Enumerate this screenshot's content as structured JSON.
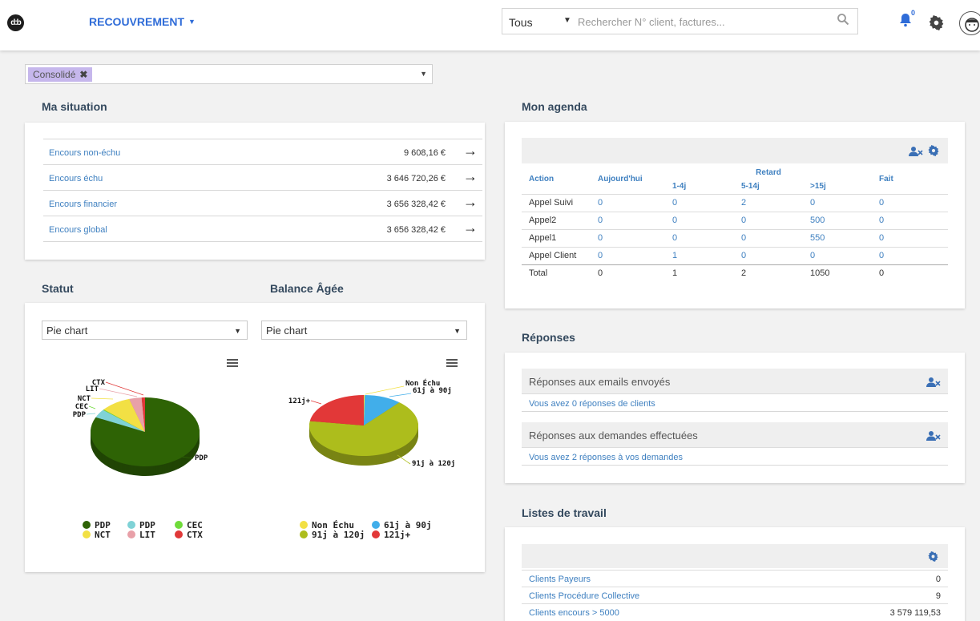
{
  "header": {
    "logo_text": "d:b",
    "module_label": "RECOUVREMENT",
    "search": {
      "scope": "Tous",
      "placeholder": "Rechercher N° client, factures..."
    },
    "notifications_count": "0"
  },
  "filter": {
    "tag": "Consolidé"
  },
  "situation": {
    "title": "Ma situation",
    "rows": [
      {
        "label": "Encours non-échu",
        "value": "9 608,16 €"
      },
      {
        "label": "Encours échu",
        "value": "3 646 720,26 €"
      },
      {
        "label": "Encours financier",
        "value": "3 656 328,42 €"
      },
      {
        "label": "Encours global",
        "value": "3 656 328,42 €"
      }
    ]
  },
  "statut": {
    "title": "Statut",
    "select_value": "Pie chart"
  },
  "balance": {
    "title": "Balance Âgée",
    "select_value": "Pie chart"
  },
  "chart_data": [
    {
      "type": "pie",
      "series": [
        {
          "name": "PDP",
          "value": 82,
          "color": "#2e6305"
        },
        {
          "name": "PDP",
          "value": 4,
          "color": "#7fd2d6"
        },
        {
          "name": "CEC",
          "value": 0.3,
          "color": "#6fdb3a"
        },
        {
          "name": "NCT",
          "value": 9,
          "color": "#f2e044"
        },
        {
          "name": "LIT",
          "value": 3.7,
          "color": "#e8a0a8"
        },
        {
          "name": "CTX",
          "value": 1,
          "color": "#e03838"
        }
      ],
      "labels": [
        "PDP",
        "CTX",
        "LIT",
        "NCT",
        "CEC",
        "PDP"
      ]
    },
    {
      "type": "pie",
      "series": [
        {
          "name": "Non Échu",
          "value": 0.3,
          "color": "#f2e044"
        },
        {
          "name": "61j à 90j",
          "value": 11,
          "color": "#41aeea"
        },
        {
          "name": "91j à 120j",
          "value": 66,
          "color": "#adbd1c"
        },
        {
          "name": "121j+",
          "value": 22.7,
          "color": "#e23838"
        }
      ],
      "labels": [
        "Non Échu",
        "61j à 90j",
        "91j à 120j",
        "121j+"
      ]
    }
  ],
  "agenda": {
    "title": "Mon agenda",
    "headers": {
      "action": "Action",
      "today": "Aujourd'hui",
      "retard": "Retard",
      "r1": "1-4j",
      "r2": "5-14j",
      "r3": ">15j",
      "done": "Fait"
    },
    "rows": [
      {
        "action": "Appel Suivi",
        "today": "0",
        "r1": "0",
        "r2": "2",
        "r3": "0",
        "done": "0"
      },
      {
        "action": "Appel2",
        "today": "0",
        "r1": "0",
        "r2": "0",
        "r3": "500",
        "done": "0"
      },
      {
        "action": "Appel1",
        "today": "0",
        "r1": "0",
        "r2": "0",
        "r3": "550",
        "done": "0"
      },
      {
        "action": "Appel Client",
        "today": "0",
        "r1": "1",
        "r2": "0",
        "r3": "0",
        "done": "0"
      },
      {
        "action": "Total",
        "today": "0",
        "r1": "1",
        "r2": "2",
        "r3": "1050",
        "done": "0"
      }
    ]
  },
  "responses": {
    "title": "Réponses",
    "blocks": [
      {
        "title": "Réponses aux emails envoyés",
        "link": "Vous avez 0 réponses de clients"
      },
      {
        "title": "Réponses aux demandes effectuées",
        "link": "Vous avez 2 réponses à vos demandes"
      }
    ]
  },
  "worklists": {
    "title": "Listes de travail",
    "rows": [
      {
        "label": "Clients Payeurs",
        "value": "0"
      },
      {
        "label": "Clients Procédure Collective",
        "value": "9"
      },
      {
        "label": "Clients encours > 5000",
        "value": "3 579 119,53"
      }
    ]
  },
  "colors": {
    "accent": "#2f6cd8",
    "link": "#3f80c0",
    "heading": "#34495e"
  }
}
